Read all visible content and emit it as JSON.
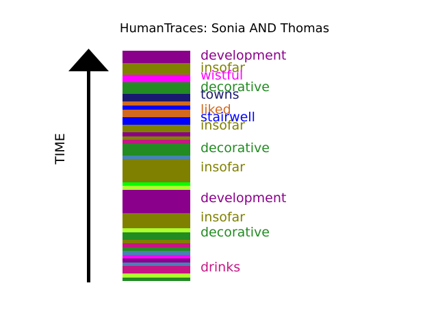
{
  "title": "HumanTraces: Sonia AND Thomas",
  "axis_label": "TIME",
  "segments": [
    {
      "start": 0,
      "end": 18,
      "color": "#8b008b"
    },
    {
      "start": 18,
      "end": 35,
      "color": "#808000"
    },
    {
      "start": 35,
      "end": 46,
      "color": "#ff00ff"
    },
    {
      "start": 46,
      "end": 63,
      "color": "#228b22"
    },
    {
      "start": 63,
      "end": 74,
      "color": "#191970"
    },
    {
      "start": 74,
      "end": 80,
      "color": "#d2691e"
    },
    {
      "start": 80,
      "end": 86,
      "color": "#0000ff"
    },
    {
      "start": 86,
      "end": 97,
      "color": "#d2691e"
    },
    {
      "start": 97,
      "end": 108,
      "color": "#0000ff"
    },
    {
      "start": 108,
      "end": 119,
      "color": "#808000"
    },
    {
      "start": 119,
      "end": 125,
      "color": "#8b008b"
    },
    {
      "start": 125,
      "end": 130,
      "color": "#808000"
    },
    {
      "start": 130,
      "end": 136,
      "color": "#c71585"
    },
    {
      "start": 136,
      "end": 153,
      "color": "#228b22"
    },
    {
      "start": 153,
      "end": 158,
      "color": "#4682b4"
    },
    {
      "start": 158,
      "end": 192,
      "color": "#808000"
    },
    {
      "start": 192,
      "end": 197,
      "color": "#00ff00"
    },
    {
      "start": 197,
      "end": 203,
      "color": "#adff2f"
    },
    {
      "start": 203,
      "end": 237,
      "color": "#8b008b"
    },
    {
      "start": 237,
      "end": 259,
      "color": "#808000"
    },
    {
      "start": 259,
      "end": 265,
      "color": "#adff2f"
    },
    {
      "start": 265,
      "end": 276,
      "color": "#228b22"
    },
    {
      "start": 276,
      "end": 281,
      "color": "#808000"
    },
    {
      "start": 281,
      "end": 287,
      "color": "#c71585"
    },
    {
      "start": 287,
      "end": 292,
      "color": "#228b22"
    },
    {
      "start": 292,
      "end": 298,
      "color": "#4682b4"
    },
    {
      "start": 298,
      "end": 303,
      "color": "#ff00ff"
    },
    {
      "start": 303,
      "end": 309,
      "color": "#8b008b"
    },
    {
      "start": 309,
      "end": 314,
      "color": "#4682b4"
    },
    {
      "start": 314,
      "end": 325,
      "color": "#c71585"
    },
    {
      "start": 325,
      "end": 331,
      "color": "#adff2f"
    },
    {
      "start": 331,
      "end": 336,
      "color": "#228b22"
    }
  ],
  "words": [
    {
      "text": "development",
      "color": "#8b008b"
    },
    {
      "text": "insofar",
      "color": "#808000"
    },
    {
      "text": "wistful",
      "color": "#ff00ff"
    },
    {
      "text": "decorative",
      "color": "#228b22"
    },
    {
      "text": "towns",
      "color": "#191970"
    },
    {
      "text": "liked",
      "color": "#d2691e"
    },
    {
      "text": "stairwell",
      "color": "#0000ff"
    },
    {
      "text": "insofar",
      "color": "#808000"
    },
    {
      "text": "decorative",
      "color": "#228b22"
    },
    {
      "text": "insofar",
      "color": "#808000"
    },
    {
      "text": "development",
      "color": "#8b008b"
    },
    {
      "text": "insofar",
      "color": "#808000"
    },
    {
      "text": "decorative",
      "color": "#228b22"
    },
    {
      "text": "drinks",
      "color": "#c71585"
    }
  ]
}
